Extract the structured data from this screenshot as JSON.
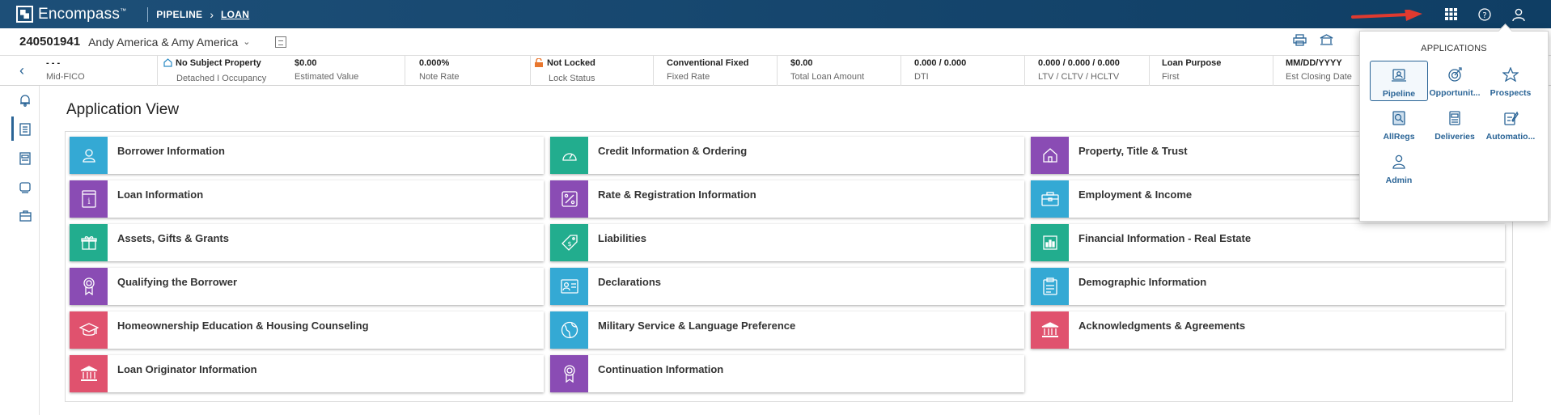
{
  "topbar": {
    "brand": "Encompass",
    "breadcrumbs": [
      "PIPELINE",
      "LOAN"
    ],
    "icons": [
      "apps-grid-icon",
      "help-icon",
      "user-icon"
    ]
  },
  "loan": {
    "number": "240501941",
    "borrowers": "Andy America & Amy America"
  },
  "info_strip": [
    {
      "value": "- - -",
      "label": "Mid-FICO"
    },
    {
      "value": "No Subject Property",
      "label": "Detached I Occupancy"
    },
    {
      "value": "$0.00",
      "label": "Estimated Value"
    },
    {
      "value": "0.000%",
      "label": "Note Rate"
    },
    {
      "value": "Not Locked",
      "label": "Lock Status"
    },
    {
      "value": "Conventional Fixed",
      "label": "Fixed Rate"
    },
    {
      "value": "$0.00",
      "label": "Total Loan Amount"
    },
    {
      "value": "0.000 / 0.000",
      "label": "DTI"
    },
    {
      "value": "0.000 / 0.000 / 0.000",
      "label": "LTV / CLTV / HCLTV"
    },
    {
      "value": "Loan Purpose",
      "label": "First"
    },
    {
      "value": "MM/DD/YYYY",
      "label": "Est Closing Date"
    }
  ],
  "main": {
    "title": "Application View",
    "tiles": [
      {
        "label": "Borrower Information",
        "icon": "person-icon",
        "color": "#34a9d4"
      },
      {
        "label": "Credit Information & Ordering",
        "icon": "gauge-icon",
        "color": "#22ad8e"
      },
      {
        "label": "Property, Title & Trust",
        "icon": "house-icon",
        "color": "#8a4cb4"
      },
      {
        "label": "Loan Information",
        "icon": "info-doc-icon",
        "color": "#8a4cb4"
      },
      {
        "label": "Rate & Registration Information",
        "icon": "percent-icon",
        "color": "#8a4cb4"
      },
      {
        "label": "Employment & Income",
        "icon": "briefcase-icon",
        "color": "#34a9d4"
      },
      {
        "label": "Assets, Gifts & Grants",
        "icon": "gift-icon",
        "color": "#22ad8e"
      },
      {
        "label": "Liabilities",
        "icon": "price-tag-icon",
        "color": "#22ad8e"
      },
      {
        "label": "Financial Information - Real Estate",
        "icon": "bar-chart-icon",
        "color": "#22ad8e"
      },
      {
        "label": "Qualifying the Borrower",
        "icon": "ribbon-icon",
        "color": "#8a4cb4"
      },
      {
        "label": "Declarations",
        "icon": "id-card-icon",
        "color": "#34a9d4"
      },
      {
        "label": "Demographic Information",
        "icon": "clipboard-icon",
        "color": "#34a9d4"
      },
      {
        "label": "Homeownership Education & Housing Counseling",
        "icon": "graduation-cap-icon",
        "color": "#e0526e"
      },
      {
        "label": "Military Service & Language Preference",
        "icon": "globe-icon",
        "color": "#34a9d4"
      },
      {
        "label": "Acknowledgments & Agreements",
        "icon": "bank-icon",
        "color": "#e0526e"
      },
      {
        "label": "Loan Originator Information",
        "icon": "bank-icon",
        "color": "#e0526e"
      },
      {
        "label": "Continuation Information",
        "icon": "ribbon-icon",
        "color": "#8a4cb4"
      }
    ]
  },
  "apps_panel": {
    "title": "APPLICATIONS",
    "items": [
      {
        "label": "Pipeline",
        "icon": "pipeline-icon"
      },
      {
        "label": "Opportunit...",
        "icon": "target-icon"
      },
      {
        "label": "Prospects",
        "icon": "star-icon"
      },
      {
        "label": "AllRegs",
        "icon": "allregs-icon"
      },
      {
        "label": "Deliveries",
        "icon": "deliveries-icon"
      },
      {
        "label": "Automatio...",
        "icon": "automation-icon"
      },
      {
        "label": "Admin",
        "icon": "admin-icon"
      }
    ]
  }
}
